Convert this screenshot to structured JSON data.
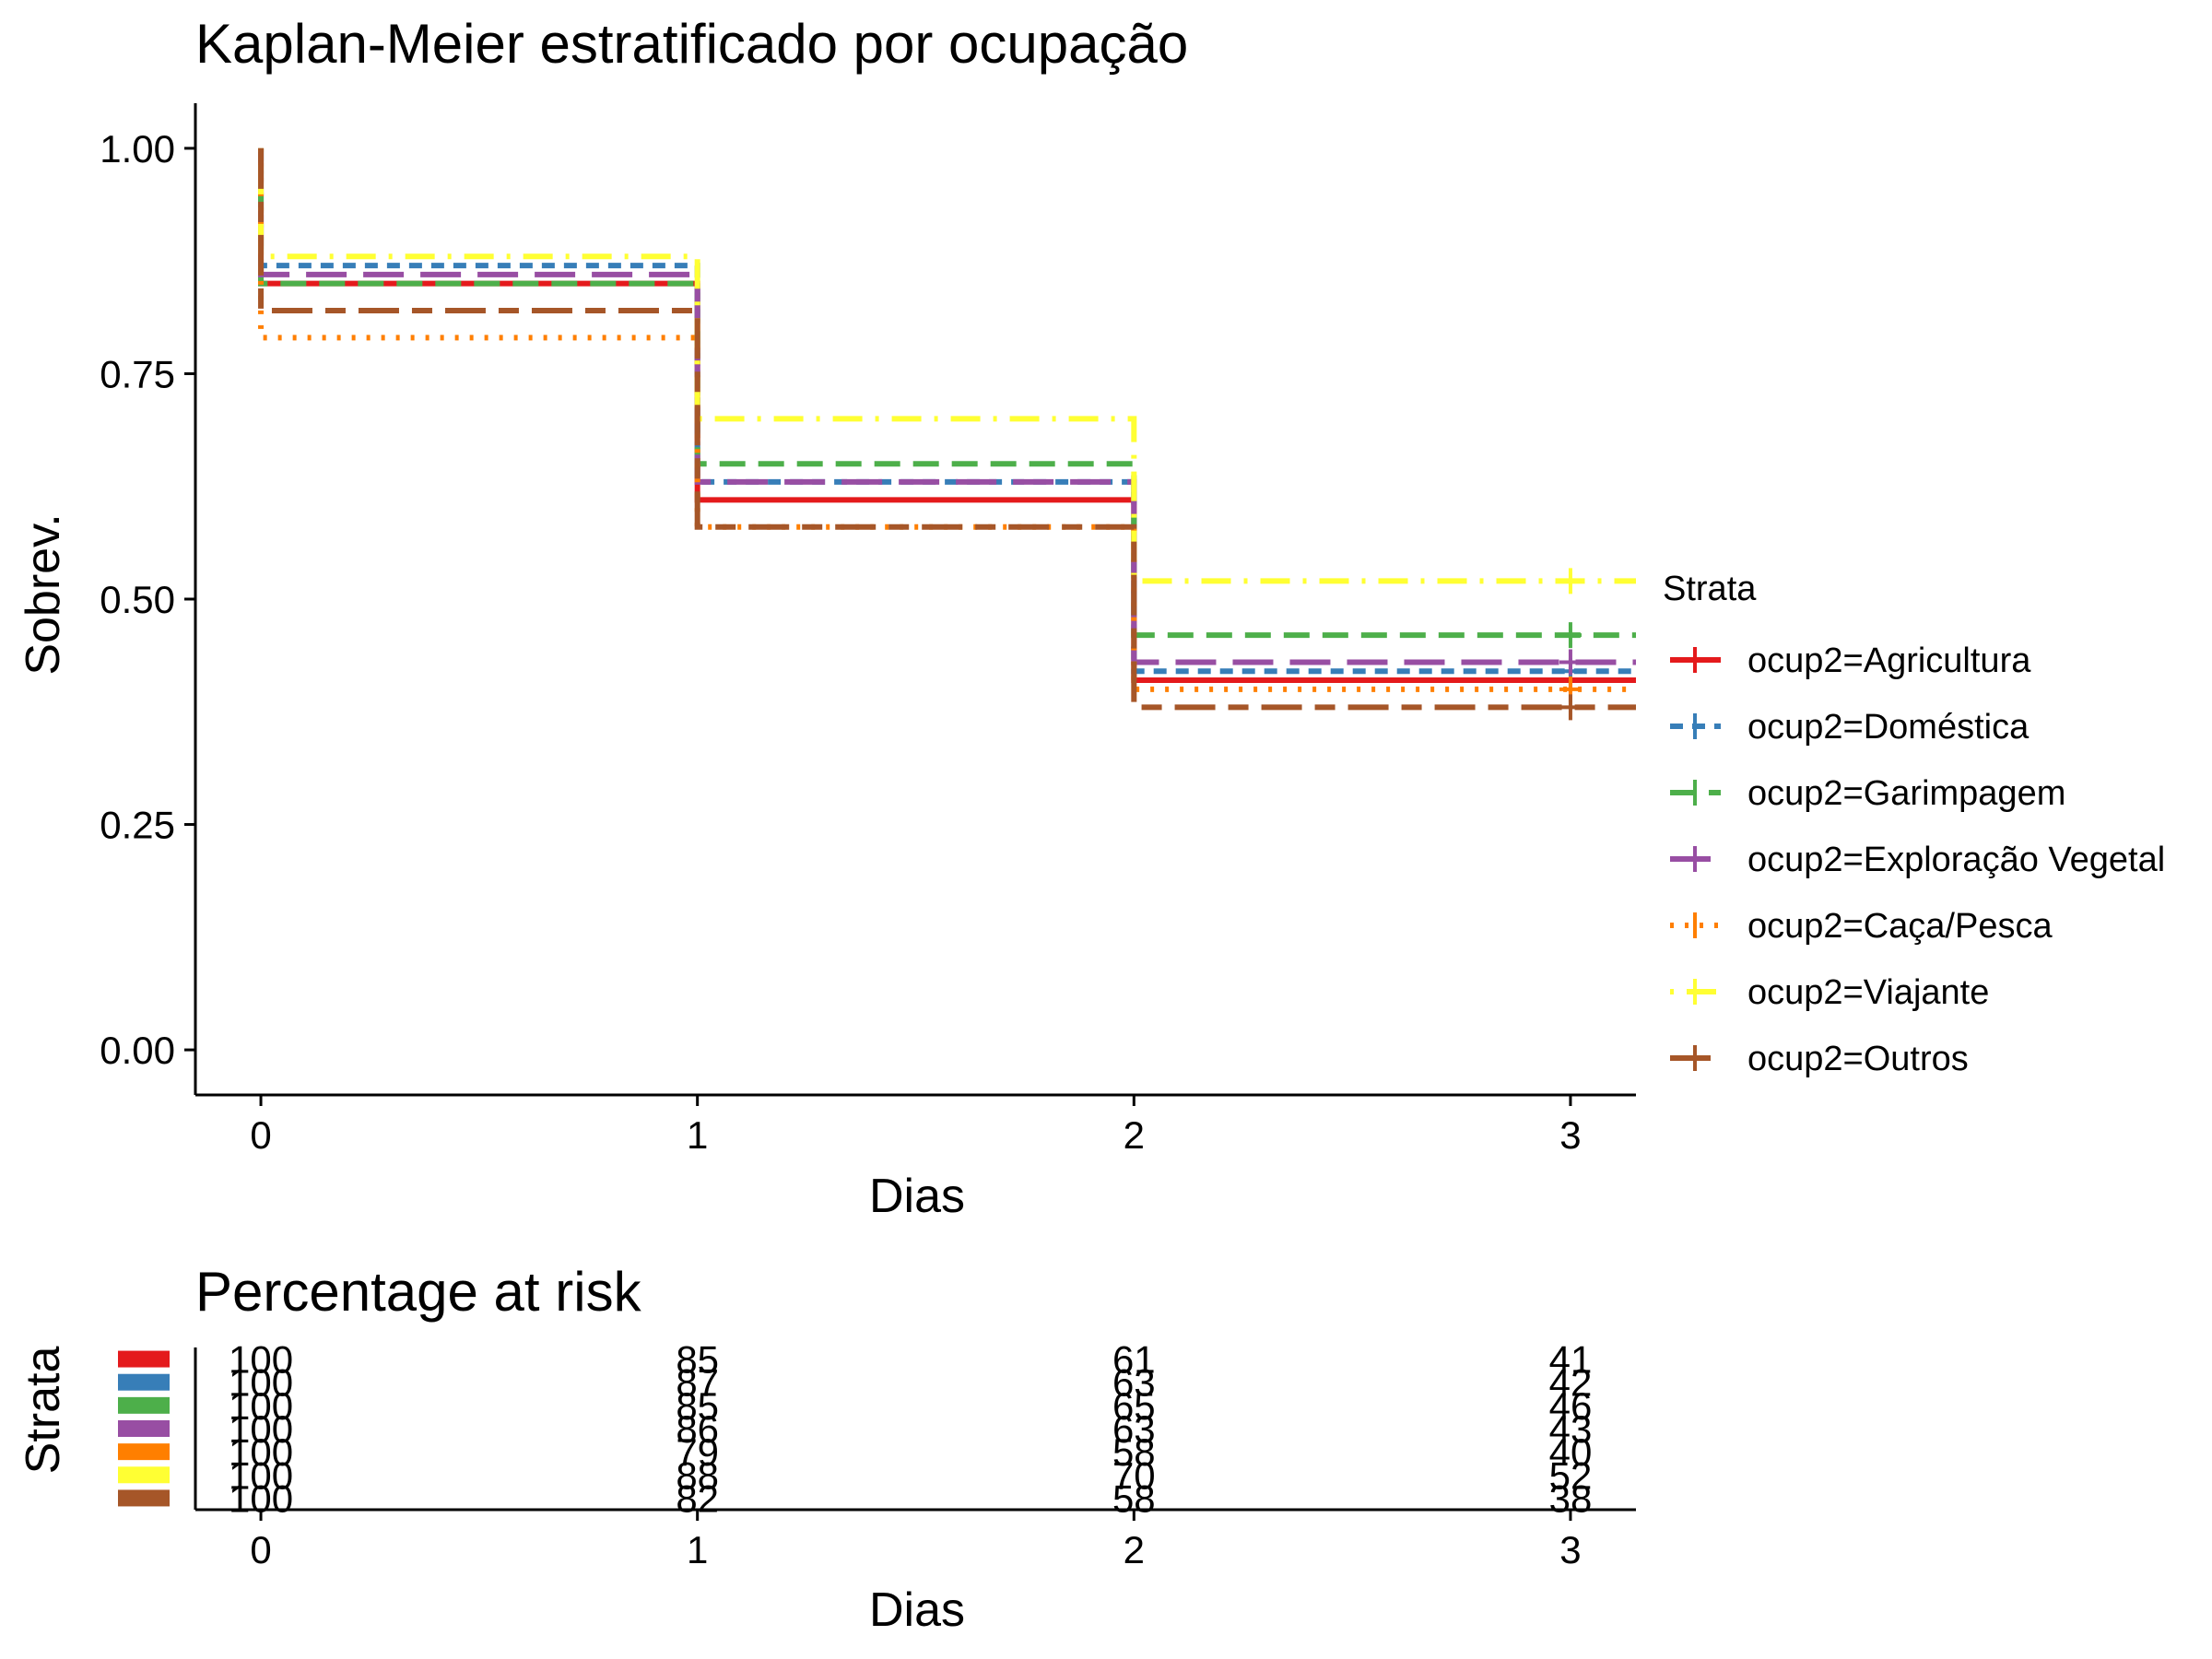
{
  "chart_data": [
    {
      "type": "line",
      "title": "Kaplan-Meier estratificado por ocupação",
      "xlabel": "Dias",
      "ylabel": "Sobrev.",
      "xlim": [
        -0.15,
        3.15
      ],
      "ylim": [
        -0.05,
        1.05
      ],
      "x_ticks": [
        "0",
        "1",
        "2",
        "3"
      ],
      "y_ticks": [
        "0.00",
        "0.25",
        "0.50",
        "0.75",
        "1.00"
      ],
      "grid": false,
      "legend_title": "Strata",
      "legend_position": "right",
      "x": [
        0,
        1,
        2,
        3
      ],
      "series": [
        {
          "name": "ocup2=Agricultura",
          "color": "#E41A1C",
          "dash": "solid",
          "values": [
            0.85,
            0.61,
            0.41,
            0.41
          ]
        },
        {
          "name": "ocup2=Doméstica",
          "color": "#377EB8",
          "dash": "short-dash",
          "values": [
            0.87,
            0.63,
            0.42,
            0.42
          ]
        },
        {
          "name": "ocup2=Garimpagem",
          "color": "#4DAF4A",
          "dash": "dash",
          "values": [
            0.85,
            0.65,
            0.46,
            0.46
          ]
        },
        {
          "name": "ocup2=Exploração Vegetal",
          "color": "#984EA3",
          "dash": "long-dash",
          "values": [
            0.86,
            0.63,
            0.43,
            0.43
          ]
        },
        {
          "name": "ocup2=Caça/Pesca",
          "color": "#FF7F00",
          "dash": "dotted",
          "values": [
            0.79,
            0.58,
            0.4,
            0.4
          ]
        },
        {
          "name": "ocup2=Viajante",
          "color": "#FFFF33",
          "dash": "dot-dash",
          "values": [
            0.88,
            0.7,
            0.52,
            0.52
          ]
        },
        {
          "name": "ocup2=Outros",
          "color": "#A65628",
          "dash": "two-dash",
          "values": [
            0.82,
            0.58,
            0.38,
            0.38
          ]
        }
      ]
    },
    {
      "type": "table",
      "title": "Percentage at risk",
      "xlabel": "Dias",
      "ylabel": "Strata",
      "x_ticks": [
        "0",
        "1",
        "2",
        "3"
      ],
      "rows": [
        {
          "color": "#E41A1C",
          "values": [
            "100",
            "85",
            "61",
            "41"
          ]
        },
        {
          "color": "#377EB8",
          "values": [
            "100",
            "87",
            "63",
            "42"
          ]
        },
        {
          "color": "#4DAF4A",
          "values": [
            "100",
            "85",
            "65",
            "46"
          ]
        },
        {
          "color": "#984EA3",
          "values": [
            "100",
            "86",
            "63",
            "43"
          ]
        },
        {
          "color": "#FF7F00",
          "values": [
            "100",
            "79",
            "58",
            "40"
          ]
        },
        {
          "color": "#FFFF33",
          "values": [
            "100",
            "88",
            "70",
            "52"
          ]
        },
        {
          "color": "#A65628",
          "values": [
            "100",
            "82",
            "58",
            "38"
          ]
        }
      ]
    }
  ]
}
